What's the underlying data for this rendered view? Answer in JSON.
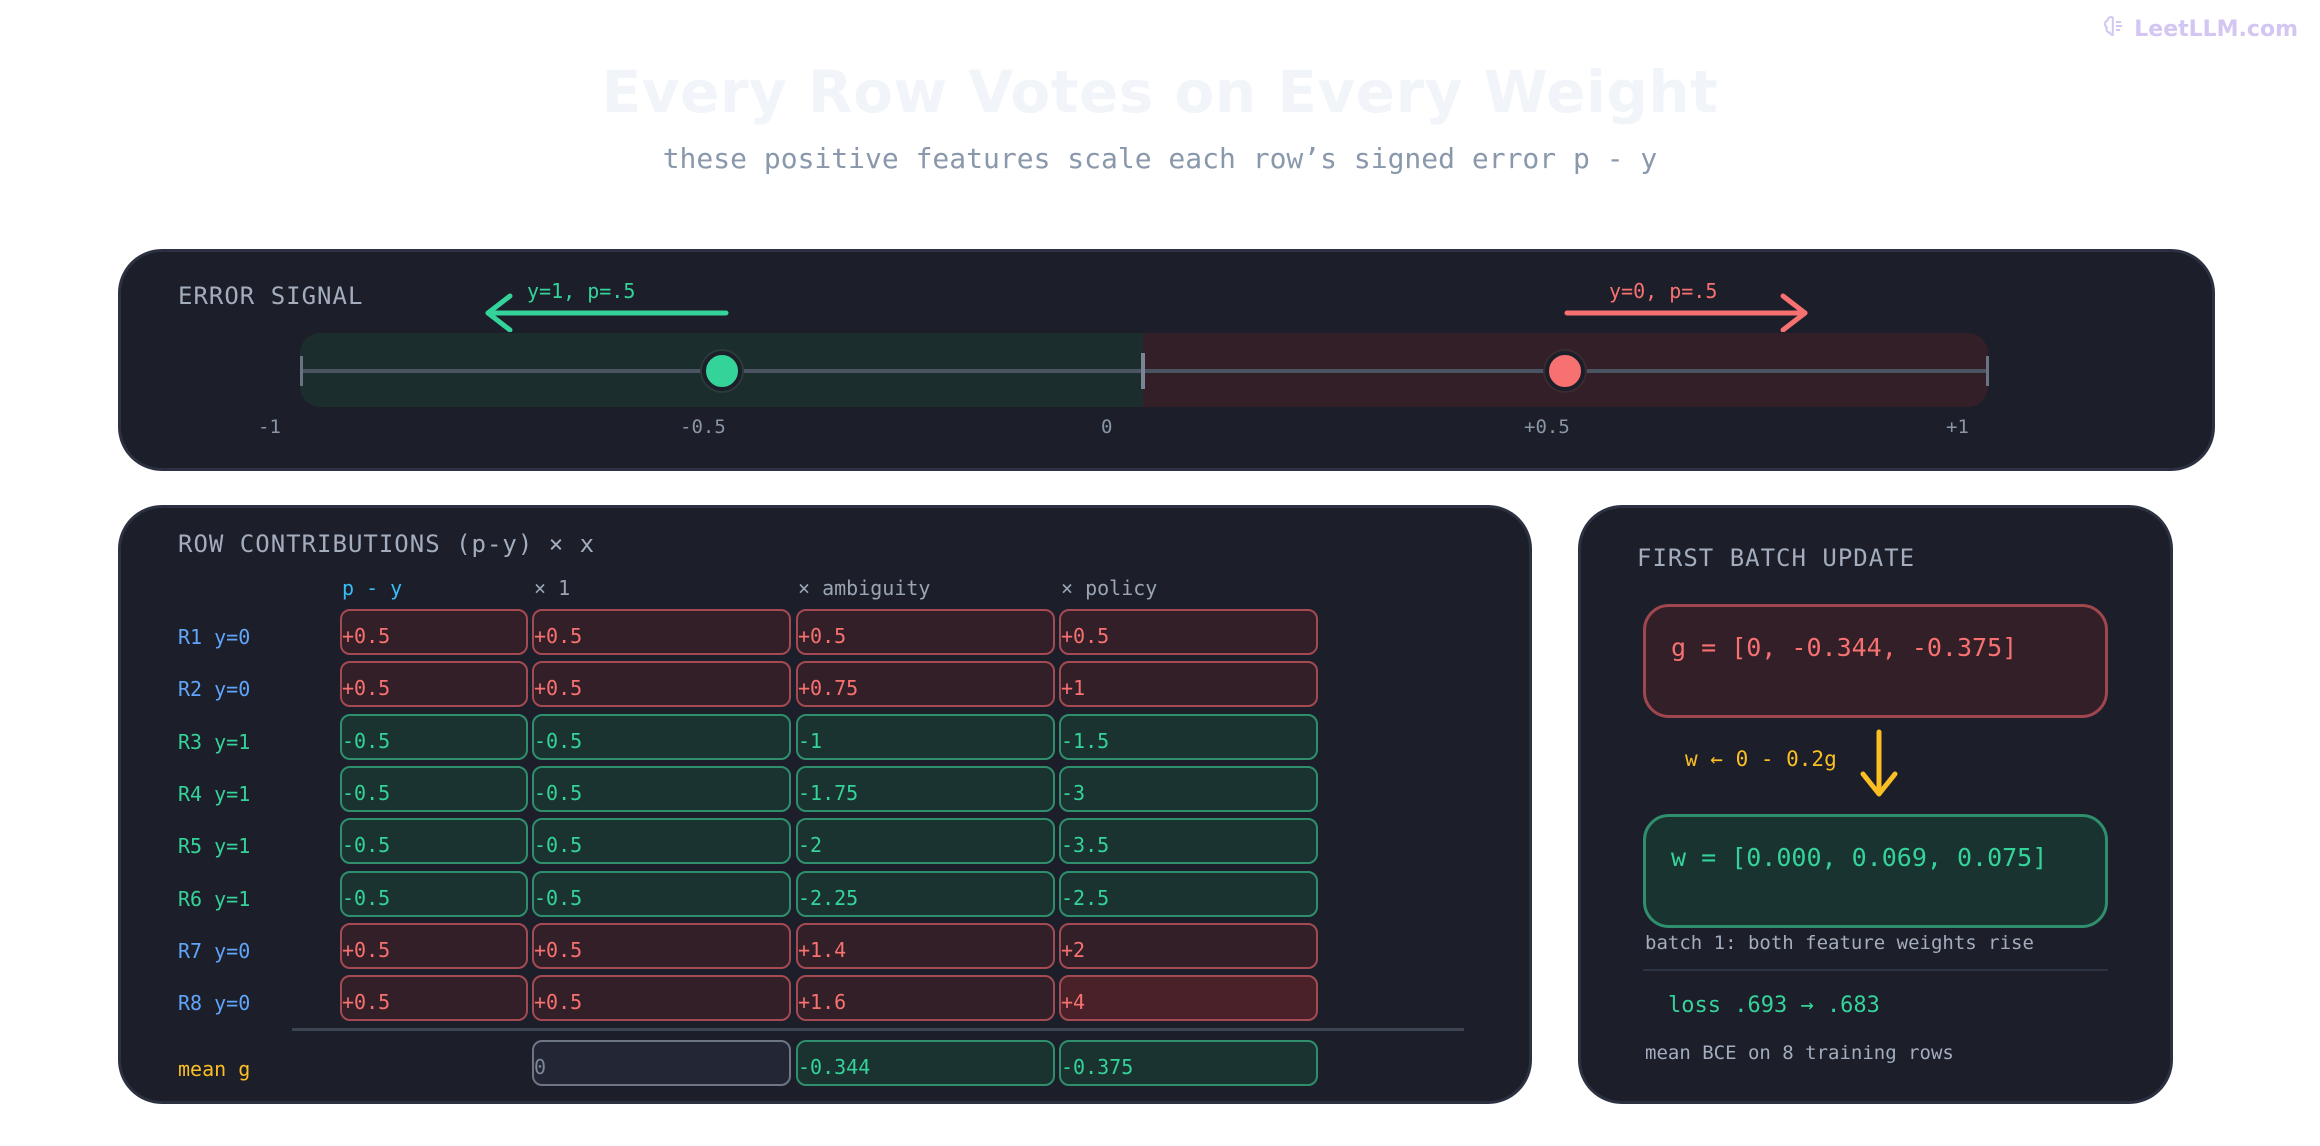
{
  "brand": {
    "watermark": "LeetLLM.com",
    "icon": "brain-icon"
  },
  "header": {
    "title": "Every Row Votes on Every Weight",
    "subtitle": "these positive features scale each row’s signed error p - y"
  },
  "error_signal": {
    "heading": "ERROR SIGNAL",
    "left_arrow_label": "y=1, p=.5",
    "right_arrow_label": "y=0, p=.5",
    "ticks": [
      "-1",
      "-0.5",
      "0",
      "+0.5",
      "+1"
    ]
  },
  "row_contributions": {
    "heading": "ROW CONTRIBUTIONS (p-y) × x",
    "columns": [
      "p - y",
      "× 1",
      "× ambiguity",
      "× policy"
    ],
    "rows": [
      {
        "label": "R1 y=0",
        "cells": [
          "+0.5",
          "+0.5",
          "+0.5",
          "+0.5"
        ]
      },
      {
        "label": "R2 y=0",
        "cells": [
          "+0.5",
          "+0.5",
          "+0.75",
          "+1"
        ]
      },
      {
        "label": "R3 y=1",
        "cells": [
          "-0.5",
          "-0.5",
          "-1",
          "-1.5"
        ]
      },
      {
        "label": "R4 y=1",
        "cells": [
          "-0.5",
          "-0.5",
          "-1.75",
          "-3"
        ]
      },
      {
        "label": "R5 y=1",
        "cells": [
          "-0.5",
          "-0.5",
          "-2",
          "-3.5"
        ]
      },
      {
        "label": "R6 y=1",
        "cells": [
          "-0.5",
          "-0.5",
          "-2.25",
          "-2.5"
        ]
      },
      {
        "label": "R7 y=0",
        "cells": [
          "+0.5",
          "+0.5",
          "+1.4",
          "+2"
        ]
      },
      {
        "label": "R8 y=0",
        "cells": [
          "+0.5",
          "+0.5",
          "+1.6",
          "+4"
        ]
      }
    ],
    "mean": {
      "label": "mean g",
      "cells": [
        "0",
        "-0.344",
        "-0.375"
      ]
    }
  },
  "batch_update": {
    "heading": "FIRST BATCH UPDATE",
    "gradient": "g = [0, -0.344, -0.375]",
    "rule": "w ← 0 - 0.2g",
    "weights": "w = [0.000, 0.069, 0.075]",
    "weights_note": "batch 1: both feature weights rise",
    "loss": "loss .693 → .683",
    "loss_note": "mean BCE on 8 training rows"
  },
  "colors": {
    "positive": "#f87171",
    "negative": "#34d399",
    "accent_yellow": "#fbbf24",
    "label_blue": "#60a5fa",
    "column_head_cyan": "#38bdf8"
  }
}
